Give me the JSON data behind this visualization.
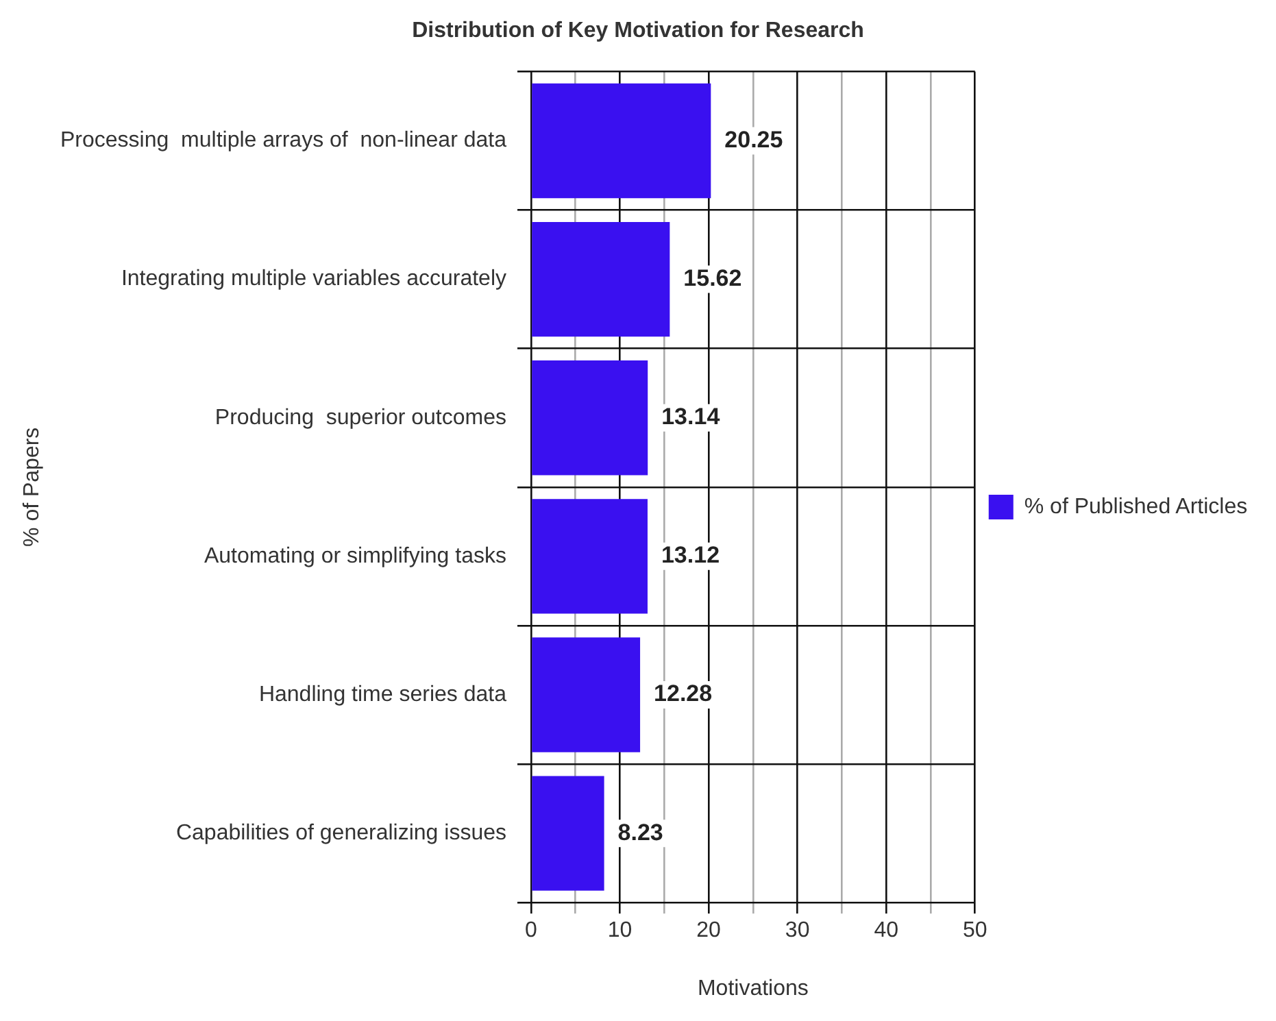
{
  "chart_data": {
    "type": "bar",
    "orientation": "horizontal",
    "title": "Distribution of Key Motivation for Research",
    "xlabel": "Motivations",
    "ylabel": "% of Papers",
    "categories": [
      "Processing  multiple arrays of  non-linear data",
      "Integrating multiple variables accurately",
      "Producing  superior outcomes",
      "Automating or simplifying tasks",
      "Handling time series data",
      "Capabilities of generalizing issues"
    ],
    "series": [
      {
        "name": "% of Published Articles",
        "color": "#3a10f0",
        "values": [
          20.25,
          15.62,
          13.14,
          13.12,
          12.28,
          8.23
        ]
      }
    ],
    "xlim": [
      0,
      50
    ],
    "xticks": [
      0,
      {
        "value": 5,
        "label": null
      },
      10,
      {
        "value": 15,
        "label": null
      },
      20,
      {
        "value": 25,
        "label": null
      },
      30,
      {
        "value": 35,
        "label": null
      },
      40,
      {
        "value": 45,
        "label": null
      },
      50
    ],
    "grid": true,
    "legend": "right",
    "data_labels": true
  }
}
